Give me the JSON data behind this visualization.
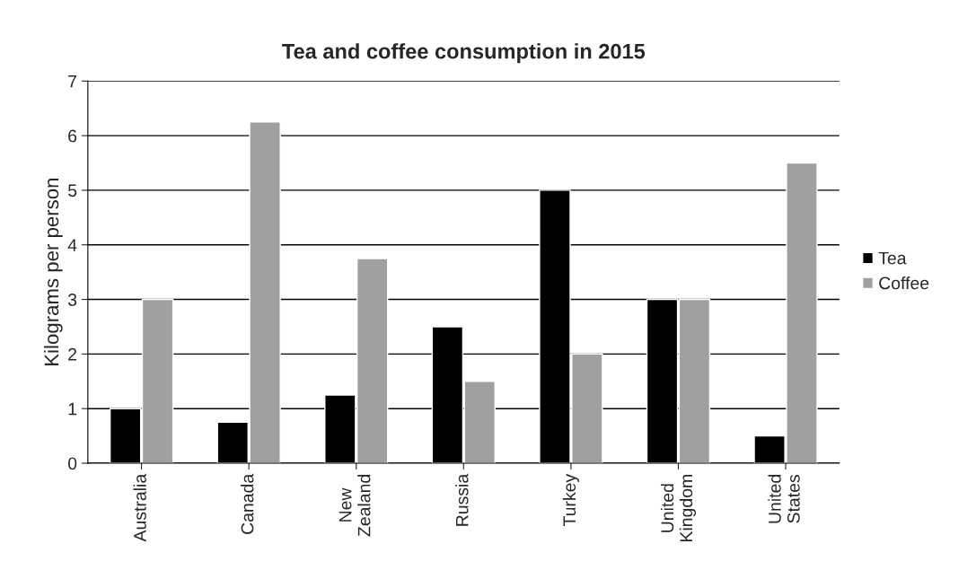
{
  "chart_data": {
    "type": "bar",
    "title": "Tea and coffee consumption in 2015",
    "ylabel": "Kilograms per person",
    "categories": [
      "Australia",
      "Canada",
      "New\nZealand",
      "Russia",
      "Turkey",
      "United\nKingdom",
      "United\nStates"
    ],
    "series": [
      {
        "name": "Tea",
        "color": "#000000",
        "values": [
          1,
          0.75,
          1.25,
          2.5,
          5,
          3,
          0.5
        ]
      },
      {
        "name": "Coffee",
        "color": "#a0a0a0",
        "values": [
          3,
          6.25,
          3.75,
          1.5,
          2,
          3,
          5.5
        ]
      }
    ],
    "ylim": [
      0,
      7
    ],
    "yticks": [
      0,
      1,
      2,
      3,
      4,
      5,
      6,
      7
    ],
    "grid": "y",
    "legend": "right"
  }
}
